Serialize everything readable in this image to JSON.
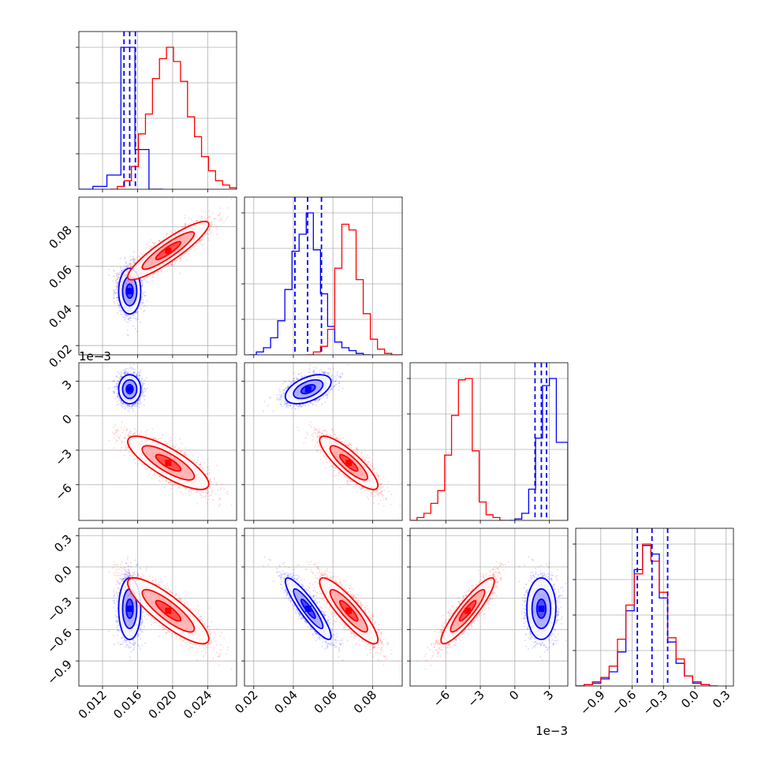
{
  "chart_data": {
    "type": "corner",
    "grid": true,
    "colors": {
      "series_a": "#0000ff",
      "series_b": "#ff0000"
    },
    "params": [
      {
        "range": [
          0.0093,
          0.0273
        ],
        "ticks": [
          0.012,
          0.016,
          0.02,
          0.024
        ],
        "tick_labels": [
          "0.012",
          "0.016",
          "0.020",
          "0.024"
        ]
      },
      {
        "range": [
          0.0153,
          0.095
        ],
        "ticks": [
          0.02,
          0.04,
          0.06,
          0.08
        ],
        "tick_labels": [
          "0.02",
          "0.04",
          "0.06",
          "0.08"
        ]
      },
      {
        "range": [
          -0.0091,
          0.0046
        ],
        "ticks": [
          -0.006,
          -0.003,
          0.0,
          0.003
        ],
        "tick_labels": [
          "−6",
          "−3",
          "0",
          "3"
        ]
      },
      {
        "range": [
          -1.14,
          0.37
        ],
        "ticks": [
          -0.9,
          -0.6,
          -0.3,
          0.0,
          0.3
        ],
        "tick_labels": [
          "−0.9",
          "−0.6",
          "−0.3",
          "0.0",
          "0.3"
        ]
      }
    ],
    "offset_label_y": "1e−3",
    "offset_label_x": "1e−3",
    "quantiles": [
      [
        0.01445,
        0.0151,
        0.01575
      ],
      [
        0.0408,
        0.0472,
        0.0542
      ],
      [
        0.00175,
        0.0023,
        0.00275
      ],
      [
        -0.55,
        -0.41,
        -0.26
      ]
    ],
    "series": [
      {
        "id": "series_a",
        "mean": [
          0.0151,
          0.0475,
          0.0023,
          -0.4
        ],
        "sd": [
          0.0006,
          0.0055,
          0.0006,
          0.14
        ],
        "corr": [
          [
            1,
            0,
            0,
            0
          ],
          [
            0,
            1,
            0.5,
            -0.9
          ],
          [
            0,
            0.5,
            1,
            0
          ],
          [
            0,
            -0.9,
            0,
            1
          ]
        ],
        "hist_edges_0": [
          0.0093,
          0.0109,
          0.0125,
          0.0141,
          0.0157,
          0.0173,
          0.0189
        ],
        "hist_counts_0": [
          0.0,
          0.02,
          0.1,
          1.0,
          0.28,
          0.0
        ],
        "hist_edges_1": [
          0.0177,
          0.0213,
          0.0249,
          0.0285,
          0.0321,
          0.0357,
          0.0393,
          0.0429,
          0.0465,
          0.0501,
          0.0537,
          0.0573,
          0.0609,
          0.0645,
          0.0681,
          0.0717,
          0.0753,
          0.0789
        ],
        "hist_counts_1": [
          0.0,
          0.02,
          0.05,
          0.12,
          0.24,
          0.46,
          0.73,
          0.85,
          1.0,
          0.74,
          0.43,
          0.2,
          0.09,
          0.05,
          0.03,
          0.01,
          0.0
        ],
        "hist_edges_2": [
          -0.0006,
          0.0,
          0.0006,
          0.0012,
          0.0018,
          0.0024,
          0.003,
          0.0036,
          0.0046
        ],
        "hist_counts_2": [
          0.0,
          0.01,
          0.05,
          0.22,
          0.58,
          0.95,
          1.0,
          0.55
        ],
        "hist_edges_3": [
          -1.14,
          -1.06,
          -0.98,
          -0.9,
          -0.82,
          -0.74,
          -0.66,
          -0.58,
          -0.5,
          -0.42,
          -0.34,
          -0.26,
          -0.18,
          -0.1,
          -0.02,
          0.06,
          0.14,
          0.22
        ],
        "hist_counts_3": [
          0.0,
          0.01,
          0.02,
          0.05,
          0.1,
          0.24,
          0.53,
          0.82,
          0.99,
          0.93,
          0.62,
          0.31,
          0.16,
          0.07,
          0.02,
          0.01,
          0.0
        ]
      },
      {
        "id": "series_b",
        "mean": [
          0.0195,
          0.068,
          -0.0041,
          -0.42
        ],
        "sd": [
          0.0022,
          0.007,
          0.0011,
          0.15
        ],
        "corr": [
          [
            1,
            0.9,
            -0.8,
            -0.85
          ],
          [
            0.9,
            1,
            -0.85,
            -0.88
          ],
          [
            -0.8,
            -0.85,
            1,
            0.9
          ],
          [
            -0.85,
            -0.88,
            0.9,
            1
          ]
        ],
        "hist_edges_0": [
          0.0129,
          0.0137,
          0.0145,
          0.0153,
          0.0161,
          0.0169,
          0.0177,
          0.0185,
          0.0193,
          0.0201,
          0.0209,
          0.0217,
          0.0225,
          0.0233,
          0.0241,
          0.0249,
          0.0257,
          0.0265,
          0.0273
        ],
        "hist_counts_0": [
          0.0,
          0.02,
          0.06,
          0.16,
          0.39,
          0.53,
          0.78,
          0.92,
          1.0,
          0.9,
          0.76,
          0.51,
          0.37,
          0.23,
          0.13,
          0.06,
          0.03,
          0.01
        ],
        "hist_edges_1": [
          0.0465,
          0.0501,
          0.0537,
          0.0573,
          0.0609,
          0.0645,
          0.0681,
          0.0717,
          0.0753,
          0.0789,
          0.0825,
          0.0861,
          0.0897,
          0.095
        ],
        "hist_counts_1": [
          0.0,
          0.02,
          0.06,
          0.18,
          0.61,
          0.92,
          0.88,
          0.53,
          0.29,
          0.11,
          0.04,
          0.01,
          0.0
        ],
        "hist_edges_2": [
          -0.0091,
          -0.0085,
          -0.0079,
          -0.0073,
          -0.0067,
          -0.0061,
          -0.0055,
          -0.0049,
          -0.0043,
          -0.0037,
          -0.0031,
          -0.0025,
          -0.0019,
          -0.0013,
          -0.0007
        ],
        "hist_counts_2": [
          0.0,
          0.02,
          0.05,
          0.12,
          0.21,
          0.46,
          0.74,
          0.99,
          1.0,
          0.49,
          0.13,
          0.04,
          0.02,
          0.0
        ],
        "hist_edges_3": [
          -1.14,
          -1.06,
          -0.98,
          -0.9,
          -0.82,
          -0.74,
          -0.66,
          -0.58,
          -0.5,
          -0.42,
          -0.34,
          -0.26,
          -0.18,
          -0.1,
          -0.02,
          0.06,
          0.14,
          0.22
        ],
        "hist_counts_3": [
          0.0,
          0.01,
          0.03,
          0.06,
          0.14,
          0.33,
          0.57,
          0.79,
          1.0,
          0.88,
          0.66,
          0.34,
          0.19,
          0.07,
          0.03,
          0.01,
          0.0
        ]
      }
    ]
  }
}
